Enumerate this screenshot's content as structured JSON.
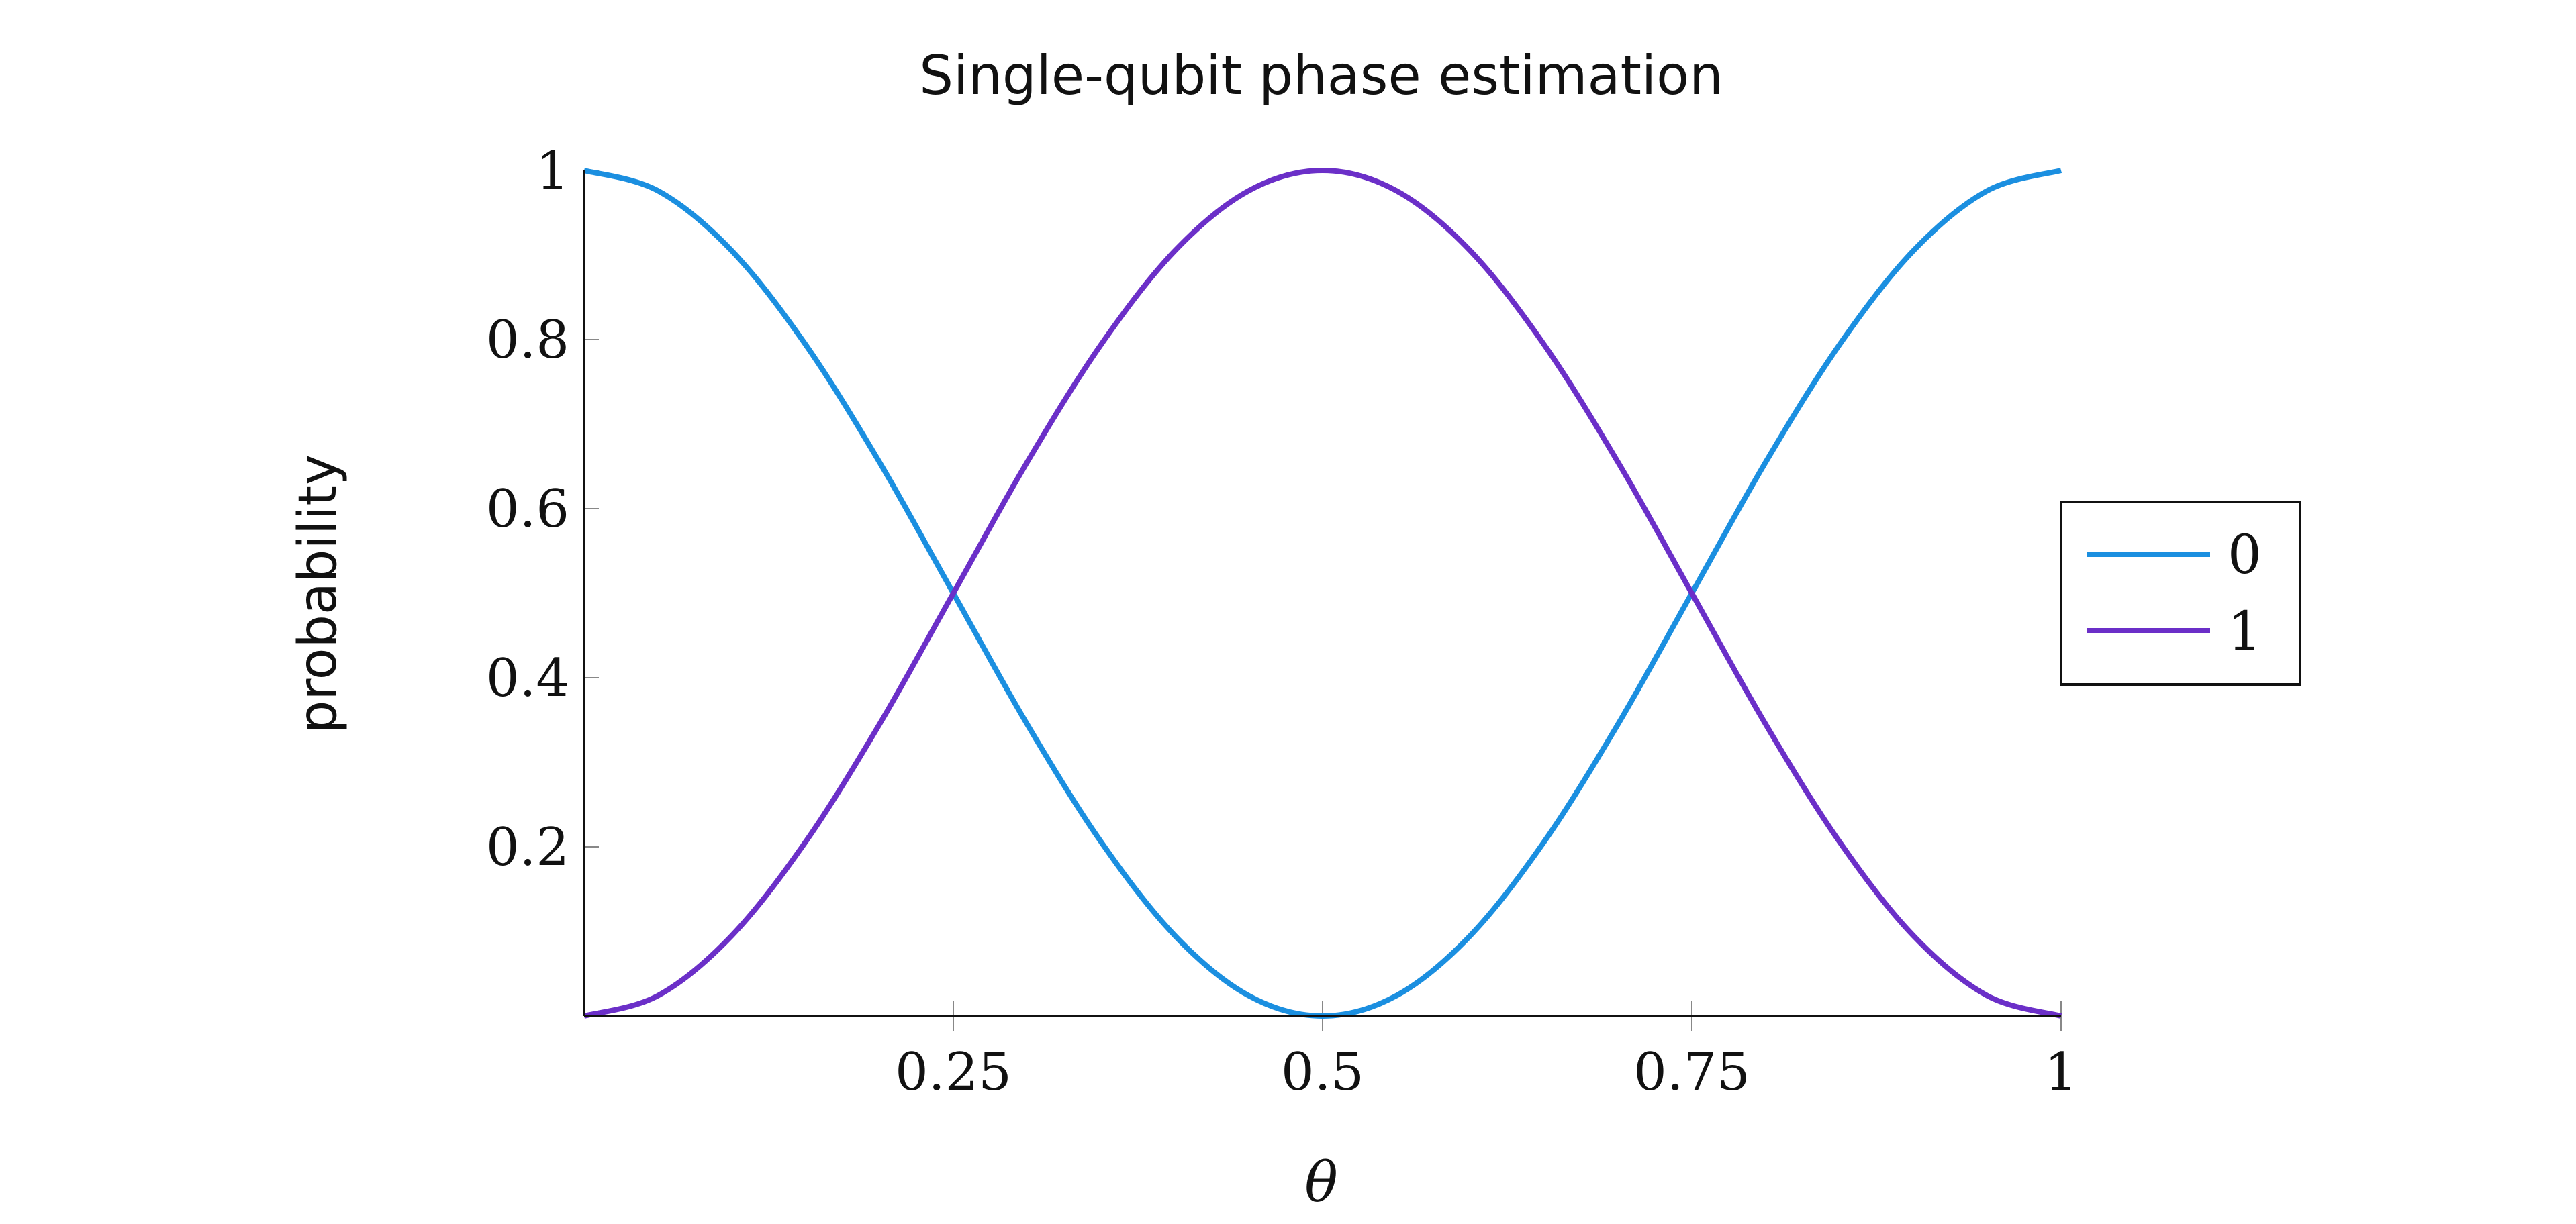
{
  "chart_data": {
    "type": "line",
    "title": "Single-qubit phase estimation",
    "xlabel": "θ",
    "ylabel": "probability",
    "xlim": [
      0,
      1
    ],
    "ylim": [
      0,
      1
    ],
    "x_ticks": [
      0.25,
      0.5,
      0.75,
      1
    ],
    "x_tick_labels": [
      "0.25",
      "0.5",
      "0.75",
      "1"
    ],
    "y_ticks": [
      0.2,
      0.4,
      0.6,
      0.8,
      1
    ],
    "y_tick_labels": [
      "0.2",
      "0.4",
      "0.6",
      "0.8",
      "1"
    ],
    "grid": false,
    "legend_position": "right",
    "x": [
      0,
      0.05,
      0.1,
      0.15,
      0.2,
      0.25,
      0.3,
      0.35,
      0.4,
      0.45,
      0.5,
      0.55,
      0.6,
      0.65,
      0.7,
      0.75,
      0.8,
      0.85,
      0.9,
      0.95,
      1
    ],
    "series": [
      {
        "name": "0",
        "color": "#1b8fe0",
        "values": [
          1.0,
          0.976,
          0.905,
          0.794,
          0.655,
          0.5,
          0.345,
          0.206,
          0.095,
          0.024,
          0.0,
          0.024,
          0.095,
          0.206,
          0.345,
          0.5,
          0.655,
          0.794,
          0.905,
          0.976,
          1.0
        ]
      },
      {
        "name": "1",
        "color": "#6b2fc8",
        "values": [
          0.0,
          0.024,
          0.095,
          0.206,
          0.345,
          0.5,
          0.655,
          0.794,
          0.905,
          0.976,
          1.0,
          0.976,
          0.905,
          0.794,
          0.655,
          0.5,
          0.345,
          0.206,
          0.095,
          0.024,
          0.0
        ]
      }
    ]
  }
}
